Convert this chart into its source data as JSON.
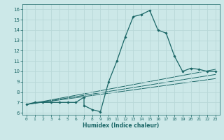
{
  "xlabel": "Humidex (Indice chaleur)",
  "ylabel": "",
  "bg_color": "#cce8e8",
  "grid_color": "#b8d8d8",
  "line_color": "#1a6666",
  "xlim": [
    -0.5,
    23.5
  ],
  "ylim": [
    5.8,
    16.5
  ],
  "xticks": [
    0,
    1,
    2,
    3,
    4,
    5,
    6,
    7,
    8,
    9,
    10,
    11,
    12,
    13,
    14,
    15,
    16,
    17,
    18,
    19,
    20,
    21,
    22,
    23
  ],
  "yticks": [
    6,
    7,
    8,
    9,
    10,
    11,
    12,
    13,
    14,
    15,
    16
  ],
  "series": {
    "main": {
      "x": [
        0,
        1,
        2,
        3,
        4,
        5,
        6,
        7,
        7,
        8,
        9,
        10,
        11,
        12,
        13,
        14,
        15,
        16,
        17,
        18,
        19,
        20,
        21,
        22,
        23
      ],
      "y": [
        6.8,
        7.0,
        7.0,
        7.0,
        7.0,
        7.0,
        7.0,
        7.5,
        6.7,
        6.3,
        6.1,
        9.0,
        11.0,
        13.3,
        15.3,
        15.5,
        15.9,
        14.0,
        13.7,
        11.5,
        10.0,
        10.3,
        10.2,
        10.0,
        10.0
      ]
    },
    "line1": {
      "x": [
        0,
        23
      ],
      "y": [
        6.8,
        10.2
      ]
    },
    "line2": {
      "x": [
        0,
        23
      ],
      "y": [
        6.8,
        9.7
      ]
    },
    "line3": {
      "x": [
        0,
        23
      ],
      "y": [
        6.8,
        9.3
      ]
    }
  }
}
